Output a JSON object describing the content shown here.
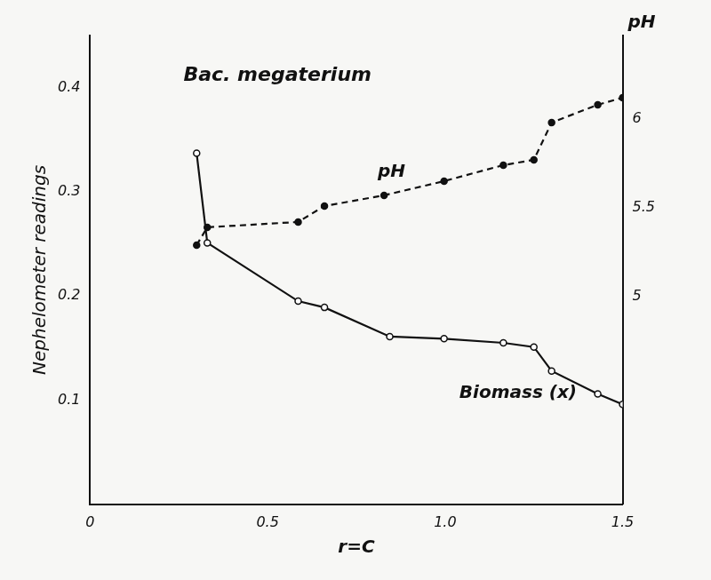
{
  "chart_data": {
    "type": "line",
    "title": "Bac. megaterium",
    "xlabel": "r=C",
    "ylabel": "Nephelometer readings",
    "y2label": "pH",
    "xlim": [
      0,
      1.5
    ],
    "xticks": [
      0,
      0.5,
      {
        "value": 1,
        "label": "1.0"
      },
      1.5
    ],
    "ylim": [
      0,
      0.45
    ],
    "yticks": [
      0.1,
      0.2,
      0.3,
      0.4
    ],
    "y2lim": [
      3.83,
      6.47
    ],
    "y2ticks": [
      5,
      5.5,
      6
    ],
    "grid": false,
    "series": [
      {
        "name": "Biomass (x)",
        "color": "#111111",
        "marker": "open_circle",
        "line_style": "solid",
        "axis": "y",
        "x": [
          0.3,
          0.33,
          0.586,
          0.66,
          0.844,
          0.997,
          1.164,
          1.25,
          1.3,
          1.43,
          1.5
        ],
        "values": [
          0.337,
          0.251,
          0.195,
          0.189,
          0.161,
          0.159,
          0.155,
          0.151,
          0.128,
          0.106,
          0.096
        ]
      },
      {
        "name": "pH",
        "color": "#111111",
        "marker": "filled_circle",
        "line_style": "dashed",
        "axis": "y2",
        "x": [
          0.3,
          0.33,
          0.586,
          0.66,
          0.828,
          0.997,
          1.164,
          1.25,
          1.3,
          1.43,
          1.5
        ],
        "values": [
          5.29,
          5.39,
          5.42,
          5.51,
          5.57,
          5.65,
          5.74,
          5.77,
          5.98,
          6.08,
          6.12
        ]
      }
    ],
    "annotations": [
      {
        "text": "pH",
        "x": 0.81,
        "y": 0.319
      },
      {
        "text": "Biomass (x)",
        "x": 1.04,
        "y": 0.107
      }
    ]
  }
}
